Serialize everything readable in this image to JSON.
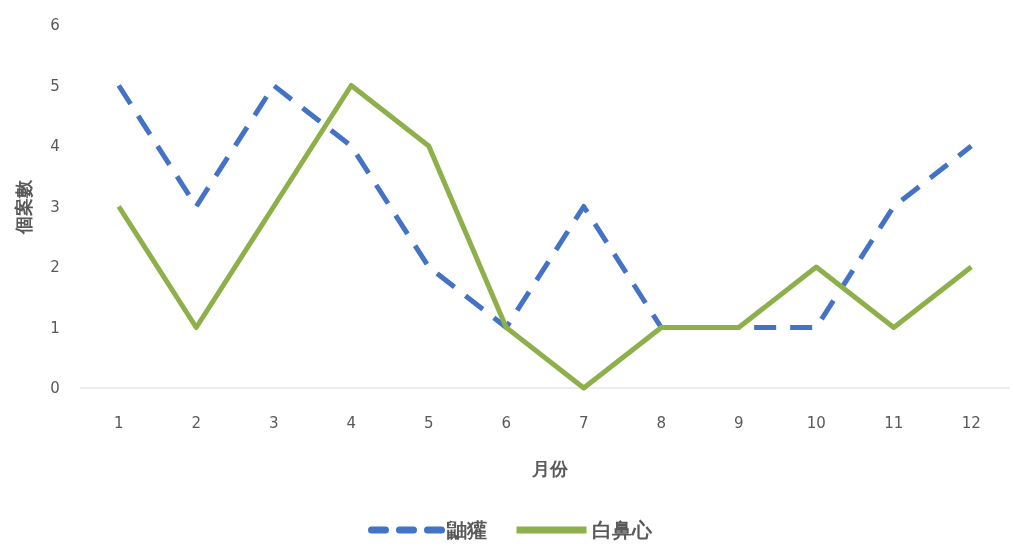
{
  "chart_data": {
    "type": "line",
    "xlabel": "月份",
    "ylabel": "個案數",
    "categories": [
      "1",
      "2",
      "3",
      "4",
      "5",
      "6",
      "7",
      "8",
      "9",
      "10",
      "11",
      "12"
    ],
    "series": [
      {
        "name": "鼬獾",
        "color": "#4472c4",
        "line_style": "dashed",
        "values": [
          5,
          3,
          5,
          4,
          2,
          1,
          3,
          1,
          1,
          1,
          3,
          4
        ]
      },
      {
        "name": "白鼻心",
        "color": "#8db04a",
        "line_style": "solid",
        "values": [
          3,
          1,
          3,
          5,
          4,
          1,
          0,
          1,
          1,
          2,
          1,
          2
        ]
      }
    ],
    "ylim": [
      0,
      6
    ],
    "yticks": [
      0,
      1,
      2,
      3,
      4,
      5,
      6
    ],
    "grid": false,
    "legend": "bottom",
    "marker": "none"
  }
}
